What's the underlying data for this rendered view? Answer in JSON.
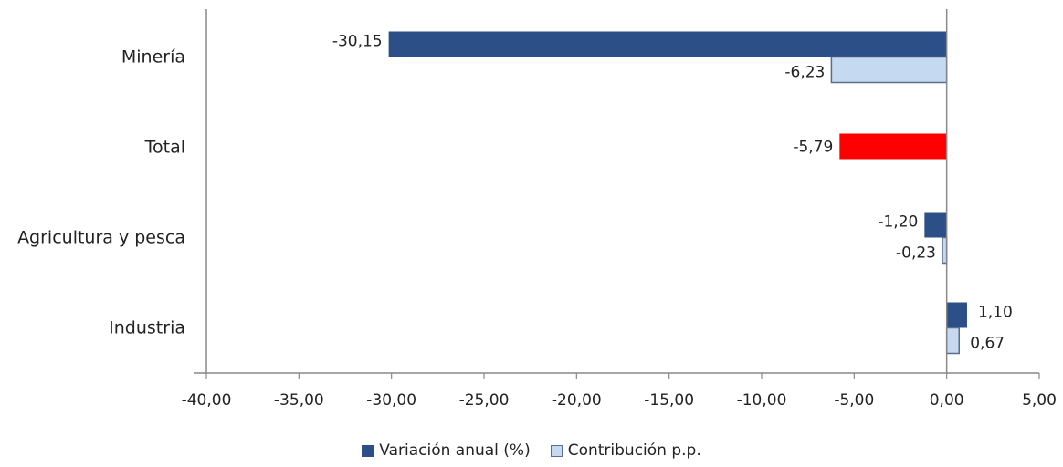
{
  "chart_data": {
    "type": "bar",
    "orientation": "horizontal",
    "title": "",
    "xlabel": "",
    "ylabel": "",
    "categories": [
      "Minería",
      "Total",
      "Agricultura y pesca",
      "Industria"
    ],
    "series": [
      {
        "name": "Variación anual (%)",
        "color": "#2B4F86",
        "values": [
          -30.15,
          null,
          -1.2,
          1.1
        ],
        "labels": [
          "-30,15",
          "",
          "-1,20",
          "1,10"
        ]
      },
      {
        "name": "Contribución p.p.",
        "color": "#C5D9F1",
        "values": [
          -6.23,
          null,
          -0.23,
          0.67
        ],
        "labels": [
          "-6,23",
          "",
          "-0,23",
          "0,67"
        ]
      }
    ],
    "highlight": {
      "category": "Total",
      "value": -5.79,
      "label": "-5,79",
      "color": "#FF0000"
    },
    "xlim": [
      -40,
      5
    ],
    "xticks": [
      -40,
      -35,
      -30,
      -25,
      -20,
      -15,
      -10,
      -5,
      0,
      5
    ],
    "xtick_labels": [
      "-40,00",
      "-35,00",
      "-30,00",
      "-25,00",
      "-20,00",
      "-15,00",
      "-10,00",
      "-5,00",
      "0,00",
      "5,00"
    ],
    "grid": false,
    "legend_position": "bottom"
  },
  "legend": {
    "items": [
      {
        "label": "Variación anual (%)",
        "color": "#2B4F86"
      },
      {
        "label": "Contribución p.p.",
        "color": "#C5D9F1"
      }
    ]
  }
}
